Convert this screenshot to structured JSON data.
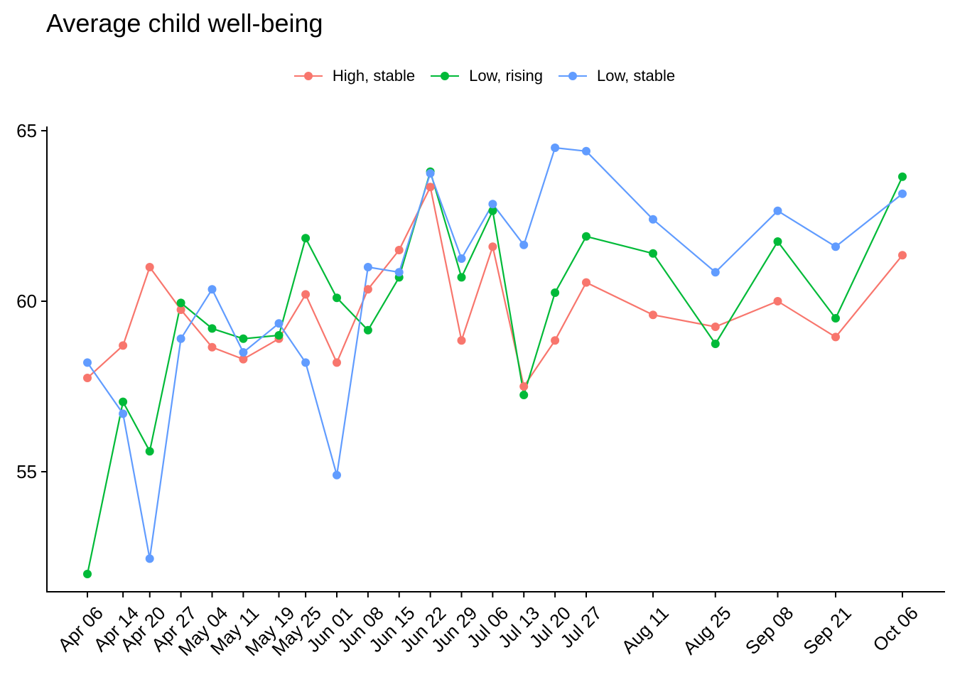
{
  "title": "Average child well-being",
  "chart_data": {
    "type": "line",
    "title": "Average child well-being",
    "xlabel": "",
    "ylabel": "",
    "x": [
      "2020-04-06",
      "2020-04-14",
      "2020-04-20",
      "2020-04-27",
      "2020-05-04",
      "2020-05-11",
      "2020-05-19",
      "2020-05-25",
      "2020-06-01",
      "2020-06-08",
      "2020-06-15",
      "2020-06-22",
      "2020-06-29",
      "2020-07-06",
      "2020-07-13",
      "2020-07-20",
      "2020-07-27",
      "2020-08-11",
      "2020-08-25",
      "2020-09-08",
      "2020-09-21",
      "2020-10-06"
    ],
    "x_tick_labels": [
      "Apr 06",
      "Apr 14",
      "Apr 20",
      "Apr 27",
      "May 04",
      "May 11",
      "May 19",
      "May 25",
      "Jun 01",
      "Jun 08",
      "Jun 15",
      "Jun 22",
      "Jun 29",
      "Jul 06",
      "Jul 13",
      "Jul 20",
      "Jul 27",
      "Aug 11",
      "Aug 25",
      "Sep 08",
      "Sep 21",
      "Oct 06"
    ],
    "y_ticks": [
      55,
      60,
      65
    ],
    "ylim": [
      51.4,
      65.2
    ],
    "legend_position": "top",
    "grid": false,
    "series": [
      {
        "name": "High, stable",
        "color": "#F8766D",
        "values": [
          57.75,
          58.7,
          61.0,
          59.75,
          58.65,
          58.3,
          58.9,
          60.2,
          58.2,
          60.35,
          61.5,
          63.35,
          58.85,
          61.6,
          57.5,
          58.85,
          60.55,
          59.6,
          59.25,
          60.0,
          58.95,
          61.35
        ]
      },
      {
        "name": "Low, rising",
        "color": "#00BA38",
        "values": [
          52.0,
          57.05,
          55.6,
          59.95,
          59.2,
          58.9,
          59.0,
          61.85,
          60.1,
          59.15,
          60.7,
          63.8,
          60.7,
          62.65,
          57.25,
          60.25,
          61.9,
          61.4,
          58.75,
          61.75,
          59.5,
          63.65
        ]
      },
      {
        "name": "Low, stable",
        "color": "#619CFF",
        "values": [
          58.2,
          56.7,
          52.45,
          58.9,
          60.35,
          58.5,
          59.35,
          58.2,
          54.9,
          61.0,
          60.85,
          63.75,
          61.25,
          62.85,
          61.65,
          64.5,
          64.4,
          62.4,
          60.85,
          62.65,
          61.6,
          63.15
        ]
      }
    ]
  }
}
